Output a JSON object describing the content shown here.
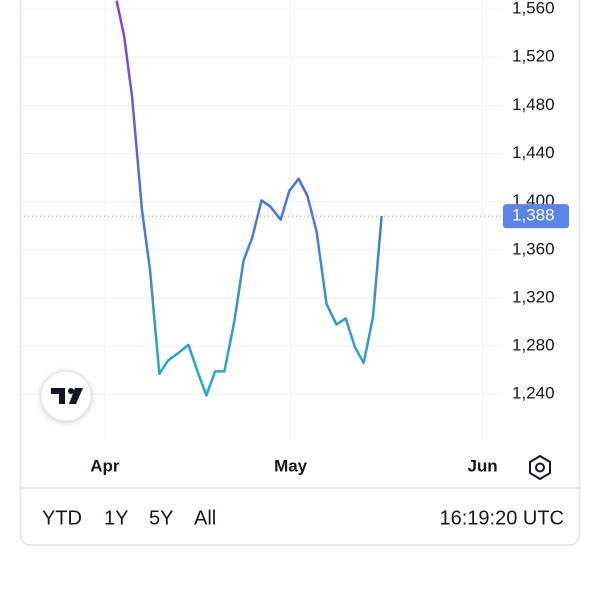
{
  "chart_data": {
    "type": "line",
    "x": [
      1.9,
      3.1,
      4.4,
      6.0,
      7.3,
      8.8,
      10.2,
      11.8,
      13.5,
      14.9,
      16.4,
      17.8,
      19.3,
      20.9,
      22.4,
      23.8,
      25.3,
      26.7,
      28.4,
      29.8,
      31.3,
      32.7,
      34.2,
      35.8,
      37.4,
      38.9,
      40.4,
      41.8,
      43.3,
      44.7
    ],
    "series": [
      {
        "values": [
          1567,
          1538,
          1487,
          1393,
          1343,
          1257,
          1268,
          1274,
          1281,
          1260,
          1239,
          1259,
          1259,
          1300,
          1351,
          1370,
          1401,
          1396,
          1385,
          1409,
          1419,
          1405,
          1375,
          1315,
          1298,
          1303,
          1279,
          1266,
          1304,
          1388
        ],
        "color_stops": [
          "#8f3bd4",
          "#4a72dc",
          "#2aa5d8"
        ]
      }
    ],
    "xlim": [
      -13.7,
      64.3
    ],
    "xticks": [
      {
        "value": 0,
        "label": "Apr"
      },
      {
        "value": 30,
        "label": "May"
      },
      {
        "value": 61,
        "label": "Jun"
      }
    ],
    "ylim": [
      1202,
      1567.5
    ],
    "yticks": [
      {
        "value": 1240,
        "label": "1,240"
      },
      {
        "value": 1280,
        "label": "1,280"
      },
      {
        "value": 1320,
        "label": "1,320"
      },
      {
        "value": 1360,
        "label": "1,360"
      },
      {
        "value": 1400,
        "label": "1,400"
      },
      {
        "value": 1440,
        "label": "1,440"
      },
      {
        "value": 1480,
        "label": "1,480"
      },
      {
        "value": 1520,
        "label": "1,520"
      },
      {
        "value": 1560,
        "label": "1,560"
      }
    ],
    "grid": true,
    "last_price": {
      "value": 1388,
      "label": "1,388",
      "color": "#5b84e8"
    }
  },
  "toolbar": {
    "ranges": [
      "YTD",
      "1Y",
      "5Y",
      "All"
    ],
    "clock": "16:19:20 UTC"
  }
}
